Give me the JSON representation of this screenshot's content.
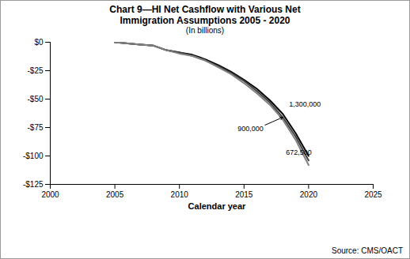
{
  "chart_data": {
    "type": "line",
    "title": "Chart 9—HI Net Cashflow with Various Net Immigration Assumptions 2005 - 2020",
    "subtitle": "(In billions)",
    "x_label": "Calendar year",
    "caption": "Source: CMS/OACT",
    "x": [
      2005,
      2006,
      2007,
      2008,
      2009,
      2010,
      2011,
      2012,
      2013,
      2014,
      2015,
      2016,
      2017,
      2018,
      2019,
      2020
    ],
    "series": [
      {
        "name": "1,300,000",
        "color": "#000000",
        "values": [
          0,
          -1,
          -2,
          -3,
          -7,
          -9,
          -11,
          -15,
          -20,
          -26,
          -33,
          -41,
          -51,
          -63,
          -80,
          -100
        ]
      },
      {
        "name": "900,000",
        "color": "#404040",
        "values": [
          0,
          -1,
          -2,
          -3,
          -7,
          -9,
          -12,
          -16,
          -21,
          -27,
          -34,
          -43,
          -53,
          -66,
          -83,
          -104
        ]
      },
      {
        "name": "672,500",
        "color": "#808080",
        "values": [
          0,
          -1,
          -2,
          -3,
          -7,
          -10,
          -12,
          -16,
          -22,
          -28,
          -36,
          -45,
          -55,
          -68,
          -86,
          -108
        ]
      }
    ],
    "xlim": [
      2000,
      2025
    ],
    "xticks": [
      2000,
      2005,
      2010,
      2015,
      2020,
      2025
    ],
    "ylim": [
      -125,
      0
    ],
    "yticks": [
      {
        "value": -125,
        "label": "-$125"
      },
      {
        "value": -100,
        "label": "-$100"
      },
      {
        "value": -75,
        "label": "-$75"
      },
      {
        "value": -50,
        "label": "-$50"
      },
      {
        "value": -25,
        "label": "-$25"
      },
      {
        "value": 0,
        "label": "$0"
      }
    ],
    "grid": false
  }
}
